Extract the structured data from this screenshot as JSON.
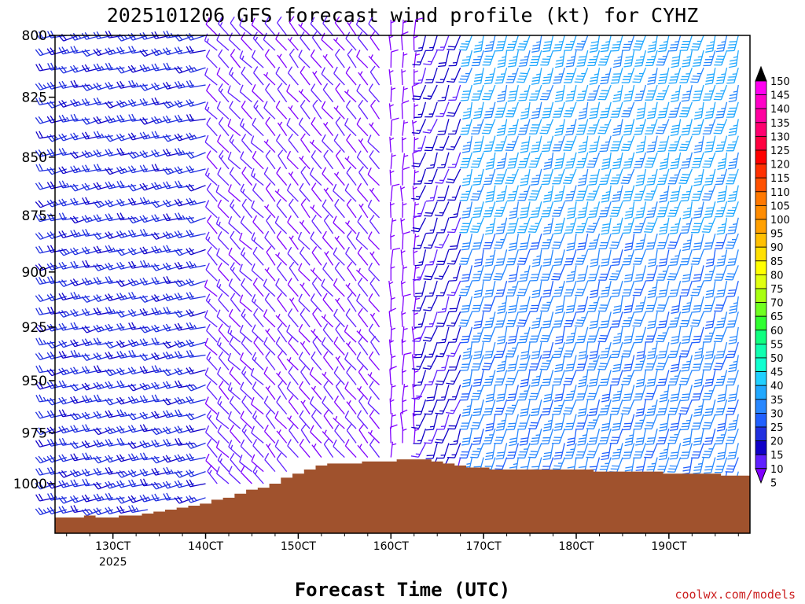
{
  "chart_data": {
    "type": "wind-barb-profile",
    "title": "2025101206 GFS forecast wind profile (kt) for CYHZ",
    "xlabel": "Forecast Time (UTC)",
    "ylabel": "",
    "credit": "coolwx.com/models",
    "pressure_levels": [
      1000,
      975,
      950,
      925,
      900,
      875,
      850,
      825,
      800
    ],
    "y_tick_labels": [
      "800",
      "825",
      "850",
      "875",
      "900",
      "925",
      "950",
      "975",
      "1000"
    ],
    "ylim_hpa": [
      800,
      1022
    ],
    "x_ticks": [
      {
        "label": "130CT",
        "sub": "2025",
        "hour": 18
      },
      {
        "label": "140CT",
        "sub": "",
        "hour": 42
      },
      {
        "label": "150CT",
        "sub": "",
        "hour": 66
      },
      {
        "label": "160CT",
        "sub": "",
        "hour": 90
      },
      {
        "label": "170CT",
        "sub": "",
        "hour": 114
      },
      {
        "label": "180CT",
        "sub": "",
        "hour": 138
      },
      {
        "label": "190CT",
        "sub": "",
        "hour": 162
      }
    ],
    "xlim_hours": [
      3,
      183
    ],
    "colorbar": {
      "unit": "kt",
      "levels": [
        5,
        10,
        15,
        20,
        25,
        30,
        35,
        40,
        45,
        50,
        55,
        60,
        65,
        70,
        75,
        80,
        85,
        90,
        95,
        100,
        105,
        110,
        115,
        120,
        125,
        130,
        135,
        140,
        145,
        150
      ],
      "labels": [
        "5",
        "10",
        "15",
        "20",
        "25",
        "30",
        "35",
        "40",
        "45",
        "50",
        "55",
        "60",
        "65",
        "70",
        "75",
        "80",
        "85",
        "90",
        "95",
        "100",
        "105",
        "110",
        "115",
        "120",
        "125",
        "130",
        "135",
        "140",
        "145",
        "150"
      ],
      "colors": [
        "#8000ff",
        "#6020ff",
        "#1000c8",
        "#2030e0",
        "#2060ff",
        "#2888ff",
        "#20a8ff",
        "#20d0ff",
        "#10ffd0",
        "#10ffb0",
        "#10ff80",
        "#30ff30",
        "#70ff20",
        "#a8ff10",
        "#e0ff10",
        "#ffff00",
        "#ffe000",
        "#ffc000",
        "#ffa000",
        "#ff8c00",
        "#ff7800",
        "#ff5000",
        "#ff3000",
        "#ff0000",
        "#ff0040",
        "#ff0070",
        "#ff00a0",
        "#ff00c8",
        "#ff00f0",
        "#000000"
      ]
    },
    "terrain": {
      "color": "#a0522d",
      "hours": [
        3,
        6,
        9,
        12,
        15,
        18,
        21,
        24,
        27,
        30,
        33,
        36,
        39,
        42,
        45,
        48,
        51,
        54,
        57,
        60,
        63,
        66,
        69,
        72,
        75,
        78,
        81,
        84,
        87,
        90,
        93,
        96,
        99,
        102,
        105,
        108,
        111,
        114,
        117,
        120,
        123,
        126,
        129,
        132,
        135,
        138,
        141,
        144,
        147,
        150,
        153,
        156,
        159,
        162,
        165,
        168,
        171,
        174,
        177,
        180
      ],
      "surface_hpa": [
        1017,
        1017,
        1017,
        1016,
        1017,
        1017,
        1016,
        1016,
        1015,
        1014,
        1013,
        1012,
        1011,
        1010,
        1008,
        1007,
        1005,
        1003,
        1002,
        1000,
        997,
        995,
        993,
        991,
        990,
        990,
        990,
        989,
        989,
        989,
        988,
        988,
        988,
        989,
        990,
        991,
        992,
        992,
        993,
        993,
        993,
        993,
        993,
        993,
        993,
        993,
        993,
        994,
        994,
        994,
        994,
        994,
        994,
        995,
        995,
        995,
        995,
        995,
        996,
        996
      ]
    },
    "barb_hours": [
      3,
      6,
      9,
      12,
      15,
      18,
      21,
      24,
      27,
      30,
      33,
      36,
      39,
      42,
      45,
      48,
      51,
      54,
      57,
      60,
      63,
      66,
      69,
      72,
      75,
      78,
      81,
      84,
      87,
      90,
      93,
      96,
      99,
      102,
      105,
      108,
      111,
      114,
      117,
      120,
      123,
      126,
      129,
      132,
      135,
      138,
      141,
      144,
      147,
      150,
      153,
      156,
      159,
      162,
      165,
      168,
      171,
      174,
      177,
      180
    ],
    "barb_levels_hpa": [
      1013,
      1007,
      1000,
      994,
      987,
      980,
      973,
      966,
      959,
      952,
      945,
      938,
      932,
      925,
      918,
      911,
      904,
      897,
      890,
      883,
      876,
      869,
      862,
      855,
      848,
      841,
      834,
      827,
      820,
      813,
      806,
      800
    ],
    "wind_regimes": [
      {
        "from_hour": 3,
        "to_hour": 42,
        "dir_deg": 255,
        "speed_kt": 20
      },
      {
        "from_hour": 45,
        "to_hour": 57,
        "dir_deg": 315,
        "speed_kt": 10
      },
      {
        "from_hour": 60,
        "to_hour": 87,
        "dir_deg": 320,
        "speed_kt": 8
      },
      {
        "from_hour": 90,
        "to_hour": 96,
        "dir_deg": 0,
        "speed_kt": 5
      },
      {
        "from_hour": 99,
        "to_hour": 108,
        "dir_deg": 200,
        "speed_kt": 15
      },
      {
        "from_hour": 111,
        "to_hour": 180,
        "dir_deg": 195,
        "speed_kt": 30
      }
    ]
  }
}
